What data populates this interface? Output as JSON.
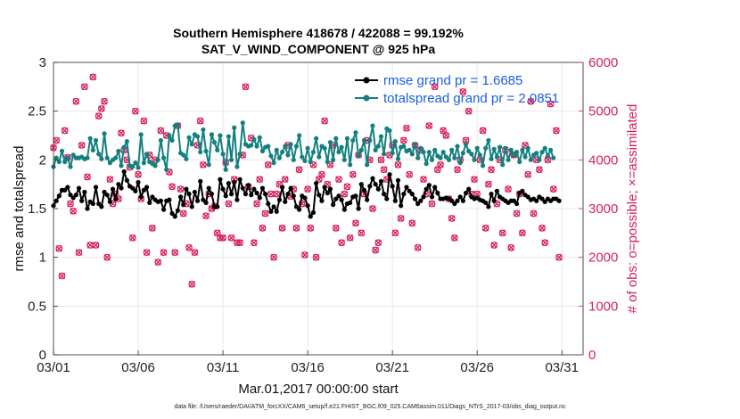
{
  "chart_data": {
    "type": "line",
    "title": "Southern Hemisphere 418678 / 422088 = 99.192%",
    "subtitle": "SAT_V_WIND_COMPONENT @ 925 hPa",
    "xlabel": "Mar.01,2017 00:00:00 start",
    "ylabel": "rmse and totalspread",
    "ylabel_right": "# of obs: o=possible; ×=assimilated",
    "footnote": "data file: /Users/raeder/DAI/ATM_forcXX/CAM6_setup/f.e21.FHIST_BGC.f09_025.CAM6assim.011/Diags_NTrS_2017-03/obs_diag_output.nc",
    "x_ticks": [
      "03/01",
      "03/06",
      "03/11",
      "03/16",
      "03/21",
      "03/26",
      "03/31"
    ],
    "x_tick_days": [
      0,
      5,
      10,
      15,
      20,
      25,
      30
    ],
    "xlim": [
      0,
      31.25
    ],
    "ylim": [
      0,
      3
    ],
    "y_ticks": [
      "0",
      "0.5",
      "1",
      "1.5",
      "2",
      "2.5",
      "3"
    ],
    "y2lim": [
      0,
      6000
    ],
    "y2_ticks": [
      "0",
      "1000",
      "2000",
      "3000",
      "4000",
      "5000",
      "6000"
    ],
    "legend": [
      {
        "label": "rmse grand pr = 1.6685",
        "color": "#000000"
      },
      {
        "label": "totalspread grand pr = 2.0851",
        "color": "#13807f"
      }
    ],
    "series": [
      {
        "name": "rmse",
        "color": "#000000",
        "values": [
          1.53,
          1.58,
          1.63,
          1.69,
          1.69,
          1.72,
          1.64,
          1.61,
          1.64,
          1.71,
          1.58,
          1.67,
          1.5,
          1.57,
          1.55,
          1.72,
          1.55,
          1.52,
          1.67,
          1.64,
          1.57,
          1.7,
          1.6,
          1.75,
          1.71,
          1.88,
          1.79,
          1.73,
          1.71,
          1.68,
          1.77,
          1.62,
          1.69,
          1.72,
          1.56,
          1.62,
          1.59,
          1.57,
          1.58,
          1.49,
          1.58,
          1.59,
          1.45,
          1.42,
          1.48,
          1.62,
          1.54,
          1.7,
          1.65,
          1.52,
          1.67,
          1.58,
          1.78,
          1.59,
          1.56,
          1.71,
          1.65,
          1.52,
          1.52,
          1.8,
          1.7,
          1.63,
          1.76,
          1.65,
          1.77,
          1.59,
          1.8,
          1.71,
          1.65,
          1.74,
          1.64,
          1.7,
          1.66,
          1.61,
          1.71,
          1.65,
          1.55,
          1.47,
          1.52,
          1.47,
          1.59,
          1.72,
          1.57,
          1.65,
          1.71,
          1.63,
          1.52,
          1.49,
          1.63,
          1.61,
          1.53,
          1.42,
          1.46,
          1.76,
          1.64,
          1.58,
          1.72,
          1.66,
          1.7,
          1.54,
          1.6,
          1.63,
          1.59,
          1.49,
          1.55,
          1.56,
          1.62,
          1.63,
          1.5,
          1.75,
          1.69,
          1.59,
          1.73,
          1.81,
          1.75,
          1.7,
          1.78,
          1.65,
          1.6,
          1.85,
          1.73,
          1.58,
          1.79,
          1.53,
          1.65,
          1.72,
          1.68,
          1.65,
          1.6,
          1.55,
          1.58,
          1.62,
          1.7,
          1.74,
          1.62,
          1.72,
          1.66,
          1.6,
          1.6,
          1.61,
          1.6,
          1.58,
          1.55,
          1.58,
          1.62,
          1.58,
          1.66,
          1.7,
          1.62,
          1.6,
          1.61,
          1.59,
          1.58,
          1.56,
          1.52,
          1.65,
          1.58,
          1.68,
          1.62,
          1.6,
          1.58,
          1.56,
          1.58,
          1.58,
          1.55,
          1.66,
          1.68,
          1.64,
          1.62,
          1.59,
          1.6,
          1.58,
          1.62,
          1.6,
          1.57,
          1.6,
          1.58,
          1.6,
          1.6,
          1.58
        ]
      },
      {
        "name": "totalspread",
        "color": "#13807f",
        "values": [
          1.93,
          2.02,
          1.98,
          2.09,
          1.98,
          2.02,
          1.93,
          2.05,
          2.02,
          2.02,
          2.03,
          2.01,
          2.02,
          2.22,
          2.1,
          2.2,
          2.06,
          2.01,
          2.27,
          2.02,
          1.97,
          2.0,
          2.02,
          2.09,
          1.94,
          2.13,
          2.19,
          1.94,
          1.93,
          1.97,
          1.92,
          2.26,
          1.97,
          2.06,
          1.98,
          1.96,
          1.94,
          2.0,
          2.2,
          2.02,
          1.9,
          2.25,
          2.2,
          2.35,
          2.36,
          2.07,
          2.05,
          2.01,
          2.23,
          2.16,
          2.26,
          2.24,
          2.08,
          2.31,
          2.09,
          1.95,
          2.26,
          2.18,
          2.1,
          2.25,
          2.06,
          1.9,
          2.24,
          2.0,
          2.33,
          1.93,
          2.06,
          2.38,
          2.16,
          2.14,
          2.15,
          2.21,
          2.14,
          2.23,
          2.09,
          2.13,
          2.14,
          2.04,
          1.97,
          2.1,
          2.02,
          2.08,
          2.14,
          2.05,
          2.16,
          2.0,
          2.14,
          2.25,
          2.03,
          1.99,
          2.12,
          1.98,
          2.08,
          2.22,
          2.03,
          2.14,
          2.12,
          1.98,
          2.18,
          2.0,
          2.22,
          2.08,
          2.13,
          2.0,
          2.22,
          1.95,
          2.2,
          2.28,
          2.04,
          2.1,
          2.2,
          1.95,
          2.2,
          2.35,
          2.1,
          2.14,
          2.24,
          2.06,
          2.32,
          2.3,
          2.07,
          2.19,
          2.01,
          2.13,
          2.14,
          2.09,
          2.1,
          2.06,
          2.16,
          2.02,
          2.12,
          2.08,
          1.96,
          2.08,
          2.0,
          2.1,
          2.04,
          2.02,
          2.08,
          2.03,
          2.0,
          2.1,
          2.02,
          2.14,
          1.97,
          2.07,
          2.16,
          2.09,
          2.06,
          2.0,
          2.12,
          2.05,
          1.94,
          2.12,
          2.2,
          2.01,
          2.11,
          2.03,
          2.13,
          1.95,
          2.12,
          2.0,
          2.1,
          2.05,
          2.08,
          1.98,
          2.1,
          2.03,
          2.12,
          2.0,
          2.05,
          2.07,
          2.0,
          2.08,
          2.12,
          2.04,
          2.1,
          2.02
        ]
      },
      {
        "name": "obs possible / assimilated",
        "color": "#d6205f",
        "values": [
          4250,
          4400,
          2180,
          1620,
          4600,
          4050,
          3100,
          2950,
          5200,
          2100,
          4300,
          5500,
          3650,
          2250,
          5700,
          2250,
          4900,
          5050,
          5200,
          2000,
          3600,
          3100,
          3300,
          3200,
          4550,
          4200,
          4000,
          3850,
          2400,
          5000,
          3700,
          3200,
          4800,
          2100,
          4100,
          2600,
          4000,
          1900,
          4600,
          2100,
          4500,
          3750,
          3450,
          2100,
          4700,
          3400,
          2900,
          3100,
          2200,
          1450,
          2100,
          4300,
          4800,
          3900,
          2850,
          3300,
          3000,
          3050,
          2500,
          2400,
          2400,
          3950,
          3100,
          2400,
          3600,
          2300,
          2300,
          4100,
          5500,
          3450,
          4450,
          2300,
          3100,
          3600,
          2600,
          2900,
          3900,
          3300,
          2000,
          3300,
          3500,
          2600,
          3600,
          4300,
          3250,
          3400,
          2600,
          3800,
          3100,
          2050,
          3400,
          2600,
          3900,
          2000,
          3600,
          3700,
          4800,
          3500,
          3900,
          4300,
          2600,
          3600,
          2300,
          3300,
          3450,
          2400,
          3700,
          2700,
          4100,
          2500,
          3300,
          4400,
          4000,
          3000,
          2150,
          2300,
          4000,
          3800,
          3600,
          4100,
          4300,
          2500,
          3900,
          2800,
          4400,
          4650,
          3700,
          2700,
          4300,
          2200,
          4200,
          3600,
          3300,
          4700,
          3100,
          5500,
          3800,
          3900,
          4600,
          4500,
          3200,
          2800,
          2400,
          3800,
          4000,
          5400,
          4400,
          5000,
          3300,
          3600,
          3300,
          4000,
          4600,
          2600,
          3500,
          3800,
          2250,
          3100,
          4000,
          2500,
          4200,
          3400,
          2200,
          4100,
          2900,
          3300,
          2500,
          4300,
          3700,
          5200,
          2900,
          4000,
          3800,
          2600,
          2300,
          4000,
          5150,
          3400,
          4600,
          2000
        ]
      }
    ]
  }
}
